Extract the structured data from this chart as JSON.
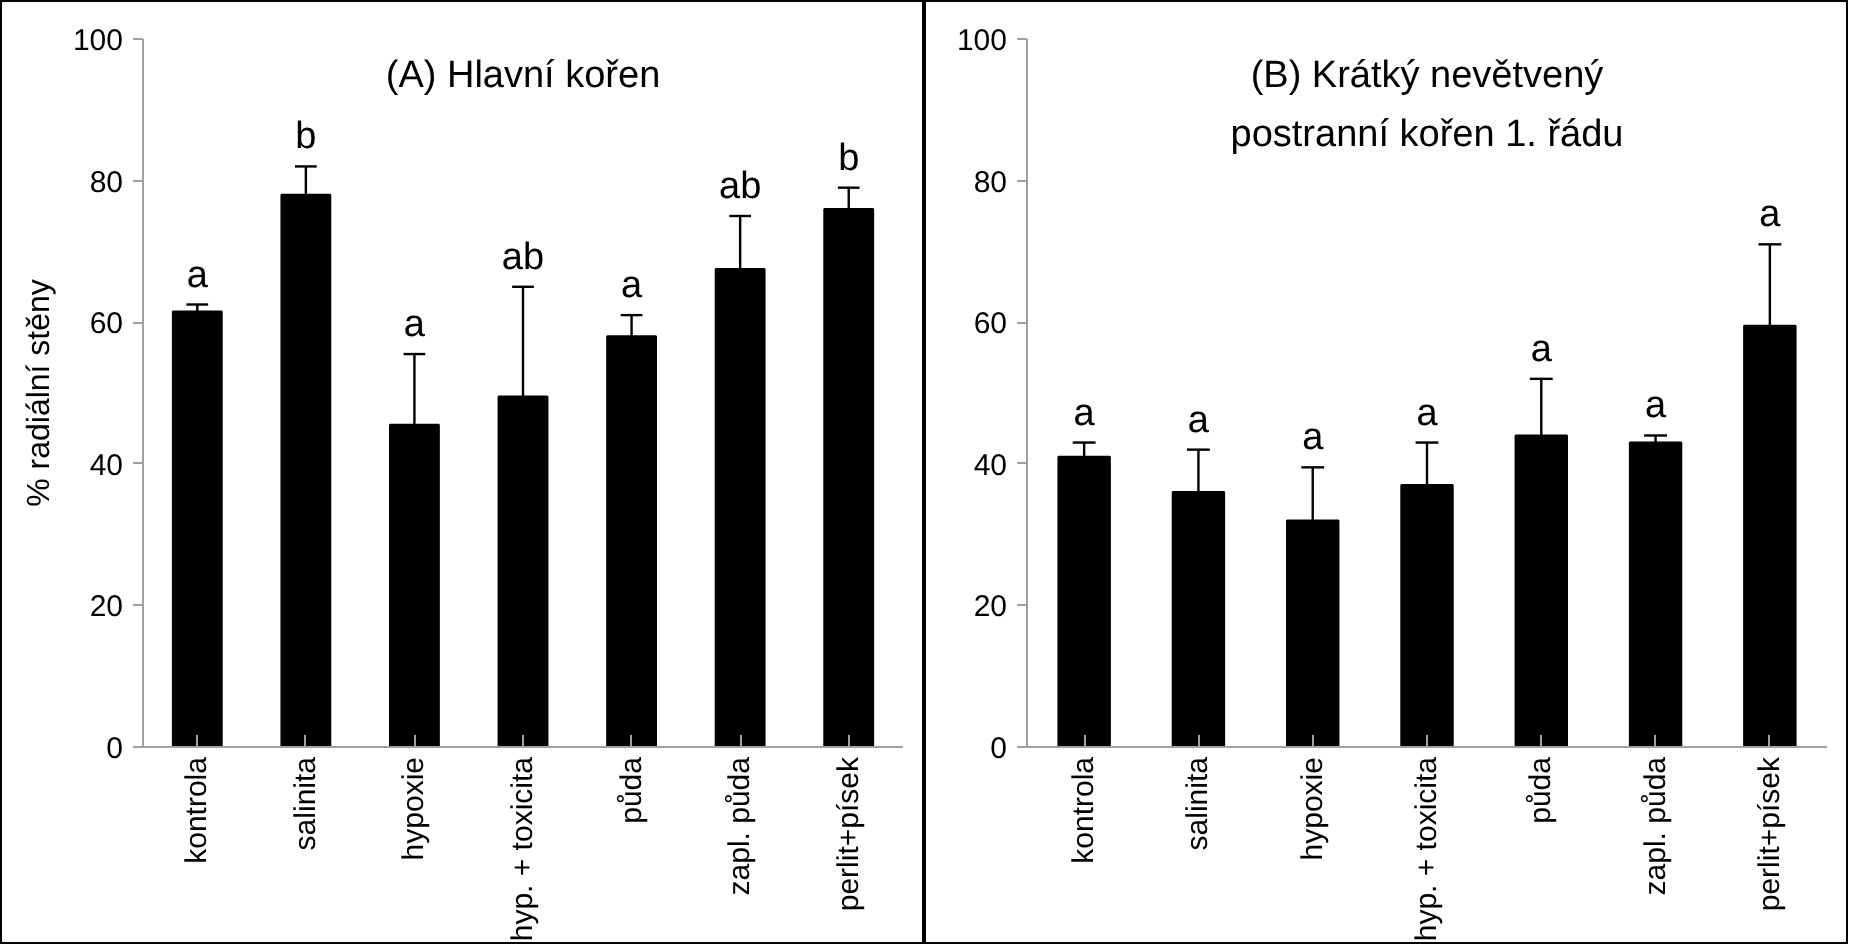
{
  "chart_data": [
    {
      "type": "bar",
      "title": "(A) Hlavní kořen",
      "ylabel": "% radiální stěny",
      "categories": [
        "kontrola",
        "salinita",
        "hypoxie",
        "hyp. + toxicita",
        "půda",
        "zapl. půda",
        "perlit+písek"
      ],
      "series": [
        {
          "color": "#000000",
          "values": [
            61.5,
            78,
            45.5,
            49.5,
            58,
            67.5,
            76
          ],
          "errors": [
            1,
            4,
            10,
            15.5,
            3,
            7.5,
            3
          ]
        }
      ],
      "ylim": [
        0,
        100
      ],
      "yticks": [
        0,
        20,
        40,
        60,
        80,
        100
      ],
      "grid": false,
      "annotations": [
        {
          "text": "a",
          "x": "kontrola",
          "y": 62.5
        },
        {
          "text": "b",
          "x": "salinita",
          "y": 82
        },
        {
          "text": "a",
          "x": "hypoxie",
          "y": 55.5
        },
        {
          "text": "ab",
          "x": "hyp. + toxicita",
          "y": 65
        },
        {
          "text": "a",
          "x": "půda",
          "y": 61
        },
        {
          "text": "ab",
          "x": "zapl. půda",
          "y": 75
        },
        {
          "text": "b",
          "x": "perlit+písek",
          "y": 79
        }
      ]
    },
    {
      "type": "bar",
      "title": "(B) Krátký nevětvený\npostranní kořen 1. řádu",
      "categories": [
        "kontrola",
        "salinita",
        "hypoxie",
        "hyp. + toxicita",
        "půda",
        "zapl. půda",
        "perlit+písek"
      ],
      "series": [
        {
          "color": "#000000",
          "values": [
            41,
            36,
            32,
            37,
            44,
            43,
            59.5
          ],
          "errors": [
            2,
            6,
            7.5,
            6,
            8,
            1,
            11.5
          ]
        }
      ],
      "ylim": [
        0,
        100
      ],
      "yticks": [
        0,
        20,
        40,
        60,
        80,
        100
      ],
      "grid": false,
      "annotations": [
        {
          "text": "a",
          "x": "kontrola",
          "y": 43
        },
        {
          "text": "a",
          "x": "salinita",
          "y": 42
        },
        {
          "text": "a",
          "x": "hypoxie",
          "y": 39.5
        },
        {
          "text": "a",
          "x": "hyp. + toxicita",
          "y": 43
        },
        {
          "text": "a",
          "x": "půda",
          "y": 52
        },
        {
          "text": "a",
          "x": "zapl. půda",
          "y": 44
        },
        {
          "text": "a",
          "x": "perlit+písek",
          "y": 71
        }
      ]
    }
  ]
}
